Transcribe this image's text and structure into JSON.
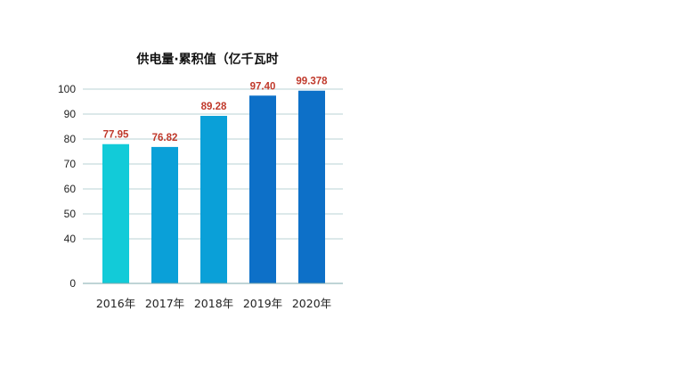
{
  "chart_data": {
    "type": "bar",
    "title": "供电量·累积值（亿千瓦时",
    "categories": [
      "2016年",
      "2017年",
      "2018年",
      "2019年",
      "2020年"
    ],
    "values": [
      77.95,
      76.82,
      89.28,
      97.4,
      99.378
    ],
    "data_labels": [
      "77.95",
      "76.82",
      "89.28",
      "97.40",
      "99.378"
    ],
    "yticks": [
      0,
      40,
      50,
      60,
      70,
      80,
      90,
      100
    ],
    "ytick_labels": [
      "0",
      "40",
      "50",
      "60",
      "70",
      "80",
      "90",
      "100"
    ],
    "ylim": [
      0,
      100
    ],
    "axis_break": [
      0,
      40
    ],
    "grid": true,
    "legend": "none",
    "bar_colors": [
      "#12cbd8",
      "#0aa0d8",
      "#0aa0d8",
      "#0d70c8",
      "#0d70c8"
    ],
    "label_color": "#c0392b"
  }
}
